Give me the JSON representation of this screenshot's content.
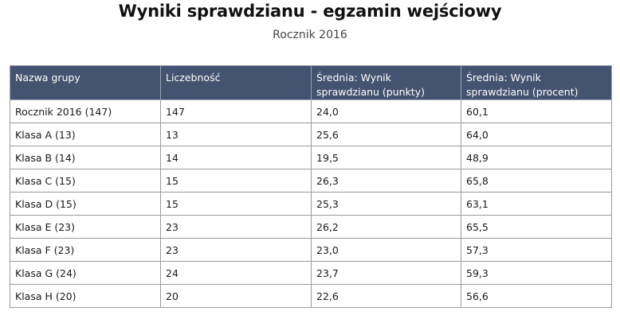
{
  "title": "Wyniki sprawdzianu - egzamin wejściowy",
  "subtitle": "Rocznik 2016",
  "table": {
    "headers": [
      "Nazwa grupy",
      "Liczebność",
      "Średnia: Wynik sprawdzianu (punkty)",
      "Średnia: Wynik sprawdzianu (procent)"
    ],
    "rows": [
      [
        "Rocznik 2016 (147)",
        "147",
        "24,0",
        "60,1"
      ],
      [
        "Klasa A (13)",
        "13",
        "25,6",
        "64,0"
      ],
      [
        "Klasa B (14)",
        "14",
        "19,5",
        "48,9"
      ],
      [
        "Klasa C (15)",
        "15",
        "26,3",
        "65,8"
      ],
      [
        "Klasa D (15)",
        "15",
        "25,3",
        "63,1"
      ],
      [
        "Klasa E (23)",
        "23",
        "26,2",
        "65,5"
      ],
      [
        "Klasa F (23)",
        "23",
        "23,0",
        "57,3"
      ],
      [
        "Klasa G (24)",
        "24",
        "23,7",
        "59,3"
      ],
      [
        "Klasa H (20)",
        "20",
        "22,6",
        "56,6"
      ]
    ]
  },
  "colors": {
    "header_bg": "#44536f",
    "header_text": "#ffffff",
    "border": "#9a9a9a"
  }
}
